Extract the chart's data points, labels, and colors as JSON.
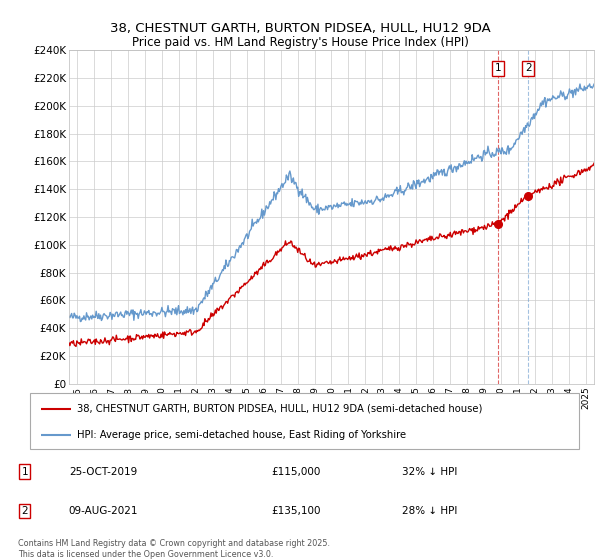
{
  "title_line1": "38, CHESTNUT GARTH, BURTON PIDSEA, HULL, HU12 9DA",
  "title_line2": "Price paid vs. HM Land Registry's House Price Index (HPI)",
  "legend_label_red": "38, CHESTNUT GARTH, BURTON PIDSEA, HULL, HU12 9DA (semi-detached house)",
  "legend_label_blue": "HPI: Average price, semi-detached house, East Riding of Yorkshire",
  "xlim": [
    1994.5,
    2025.5
  ],
  "ylim": [
    0,
    240000
  ],
  "yticks": [
    0,
    20000,
    40000,
    60000,
    80000,
    100000,
    120000,
    140000,
    160000,
    180000,
    200000,
    220000,
    240000
  ],
  "ytick_labels": [
    "£0",
    "£20K",
    "£40K",
    "£60K",
    "£80K",
    "£100K",
    "£120K",
    "£140K",
    "£160K",
    "£180K",
    "£200K",
    "£220K",
    "£240K"
  ],
  "xticks": [
    1995,
    1996,
    1997,
    1998,
    1999,
    2000,
    2001,
    2002,
    2003,
    2004,
    2005,
    2006,
    2007,
    2008,
    2009,
    2010,
    2011,
    2012,
    2013,
    2014,
    2015,
    2016,
    2017,
    2018,
    2019,
    2020,
    2021,
    2022,
    2023,
    2024,
    2025
  ],
  "event1_x": 2019.82,
  "event1_label": "1",
  "event1_price": 115000,
  "event1_date": "25-OCT-2019",
  "event1_hpi_text": "32% ↓ HPI",
  "event2_x": 2021.61,
  "event2_label": "2",
  "event2_price": 135100,
  "event2_date": "09-AUG-2021",
  "event2_hpi_text": "28% ↓ HPI",
  "red_color": "#cc0000",
  "blue_color": "#6699cc",
  "background_color": "#ffffff",
  "grid_color": "#cccccc",
  "footer_text": "Contains HM Land Registry data © Crown copyright and database right 2025.\nThis data is licensed under the Open Government Licence v3.0."
}
